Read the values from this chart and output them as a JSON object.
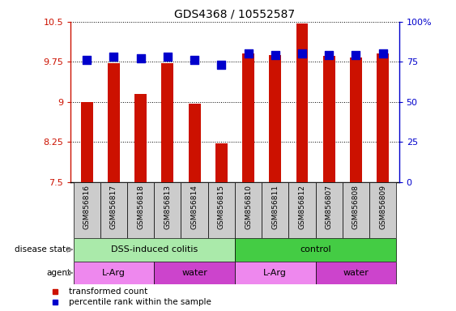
{
  "title": "GDS4368 / 10552587",
  "samples": [
    "GSM856816",
    "GSM856817",
    "GSM856818",
    "GSM856813",
    "GSM856814",
    "GSM856815",
    "GSM856810",
    "GSM856811",
    "GSM856812",
    "GSM856807",
    "GSM856808",
    "GSM856809"
  ],
  "bar_values": [
    9.0,
    9.72,
    9.15,
    9.72,
    8.97,
    8.22,
    9.91,
    9.87,
    10.47,
    9.86,
    9.83,
    9.9
  ],
  "dot_values": [
    9.79,
    9.85,
    9.82,
    9.85,
    9.79,
    9.7,
    9.91,
    9.88,
    9.91,
    9.88,
    9.87,
    9.9
  ],
  "bar_color": "#cc1100",
  "dot_color": "#0000cc",
  "ylim_left": [
    7.5,
    10.5
  ],
  "ylim_right": [
    0,
    100
  ],
  "yticks_left": [
    7.5,
    8.25,
    9.0,
    9.75,
    10.5
  ],
  "yticks_left_labels": [
    "7.5",
    "8.25",
    "9",
    "9.75",
    "10.5"
  ],
  "yticks_right": [
    0,
    25,
    50,
    75,
    100
  ],
  "yticks_right_labels": [
    "0",
    "25",
    "50",
    "75",
    "100%"
  ],
  "grid_y": [
    7.5,
    8.25,
    9.0,
    9.75,
    10.5
  ],
  "disease_state_label": "disease state",
  "agent_label": "agent",
  "groups_disease": [
    {
      "label": "DSS-induced colitis",
      "start": 0,
      "end": 5,
      "color": "#aaeaaa"
    },
    {
      "label": "control",
      "start": 6,
      "end": 11,
      "color": "#44cc44"
    }
  ],
  "groups_agent": [
    {
      "label": "L-Arg",
      "start": 0,
      "end": 2,
      "color": "#ee88ee"
    },
    {
      "label": "water",
      "start": 3,
      "end": 5,
      "color": "#cc44cc"
    },
    {
      "label": "L-Arg",
      "start": 6,
      "end": 8,
      "color": "#ee88ee"
    },
    {
      "label": "water",
      "start": 9,
      "end": 11,
      "color": "#cc44cc"
    }
  ],
  "legend_bar_label": "transformed count",
  "legend_dot_label": "percentile rank within the sample",
  "bar_width": 0.45,
  "dot_marker_size": 55,
  "tick_label_bg": "#cccccc",
  "figsize": [
    5.63,
    3.84
  ],
  "dpi": 100
}
